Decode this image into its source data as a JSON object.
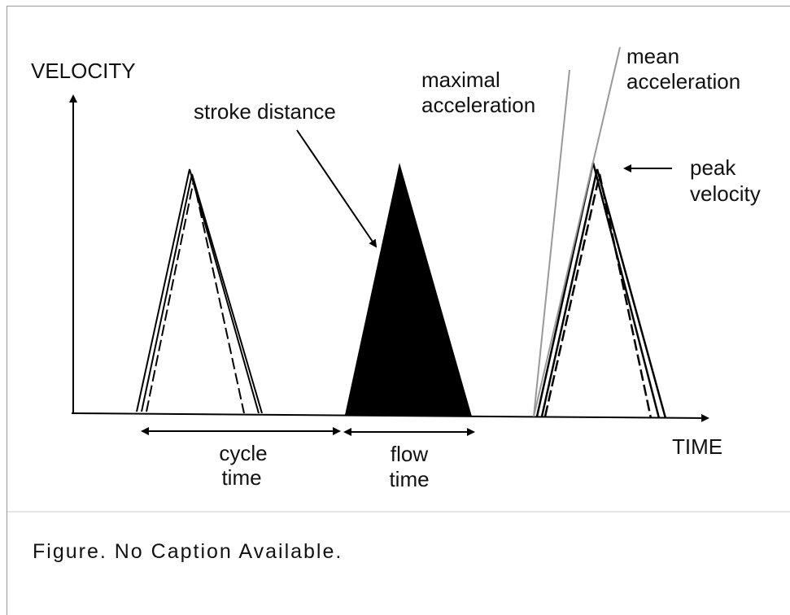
{
  "diagram": {
    "labels": {
      "y_axis": "VELOCITY",
      "x_axis": "TIME",
      "stroke_distance": "stroke distance",
      "maximal_acceleration": [
        "maximal",
        "acceleration"
      ],
      "mean_acceleration": [
        "mean",
        "acceleration"
      ],
      "peak_velocity": [
        "peak",
        "velocity"
      ],
      "cycle_time": [
        "cycle",
        "time"
      ],
      "flow_time": [
        "flow",
        "time"
      ]
    },
    "caption": "Figure. No Caption Available."
  }
}
